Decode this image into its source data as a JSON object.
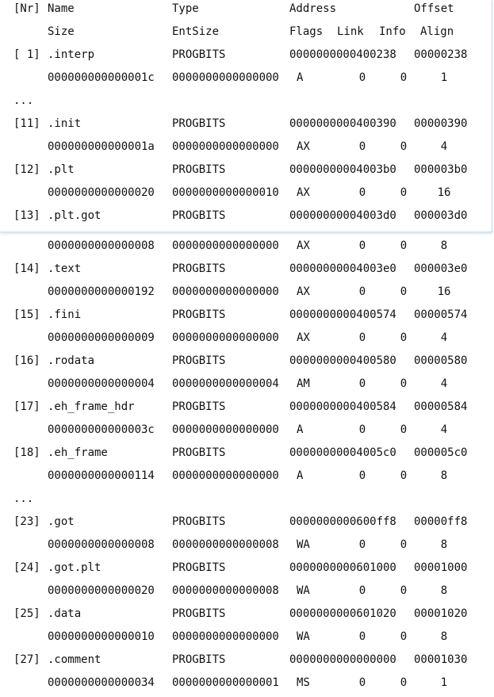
{
  "header": {
    "nr": "[Nr]",
    "name": "Name",
    "type": "Type",
    "address": "Address",
    "offset": "Offset",
    "size": "Size",
    "entsize": "EntSize",
    "flags": "Flags",
    "link": "Link",
    "info": "Info",
    "align": "Align"
  },
  "ellipsis": "...",
  "sections": [
    {
      "nr": "[ 1]",
      "name": ".interp",
      "type": "PROGBITS",
      "address": "0000000000400238",
      "offset": "00000238",
      "size": "000000000000001c",
      "entsize": "0000000000000000",
      "flags": "A",
      "link": "0",
      "info": "0",
      "align": "1"
    },
    {
      "nr": "[11]",
      "name": ".init",
      "type": "PROGBITS",
      "address": "0000000000400390",
      "offset": "00000390",
      "size": "000000000000001a",
      "entsize": "0000000000000000",
      "flags": "AX",
      "link": "0",
      "info": "0",
      "align": "4"
    },
    {
      "nr": "[12]",
      "name": ".plt",
      "type": "PROGBITS",
      "address": "00000000004003b0",
      "offset": "000003b0",
      "size": "0000000000000020",
      "entsize": "0000000000000010",
      "flags": "AX",
      "link": "0",
      "info": "0",
      "align": "16"
    },
    {
      "nr": "[13]",
      "name": ".plt.got",
      "type": "PROGBITS",
      "address": "00000000004003d0",
      "offset": "000003d0",
      "size": "0000000000000008",
      "entsize": "0000000000000000",
      "flags": "AX",
      "link": "0",
      "info": "0",
      "align": "8"
    },
    {
      "nr": "[14]",
      "name": ".text",
      "type": "PROGBITS",
      "address": "00000000004003e0",
      "offset": "000003e0",
      "size": "0000000000000192",
      "entsize": "0000000000000000",
      "flags": "AX",
      "link": "0",
      "info": "0",
      "align": "16"
    },
    {
      "nr": "[15]",
      "name": ".fini",
      "type": "PROGBITS",
      "address": "0000000000400574",
      "offset": "00000574",
      "size": "0000000000000009",
      "entsize": "0000000000000000",
      "flags": "AX",
      "link": "0",
      "info": "0",
      "align": "4"
    },
    {
      "nr": "[16]",
      "name": ".rodata",
      "type": "PROGBITS",
      "address": "0000000000400580",
      "offset": "00000580",
      "size": "0000000000000004",
      "entsize": "0000000000000004",
      "flags": "AM",
      "link": "0",
      "info": "0",
      "align": "4"
    },
    {
      "nr": "[17]",
      "name": ".eh_frame_hdr",
      "type": "PROGBITS",
      "address": "0000000000400584",
      "offset": "00000584",
      "size": "000000000000003c",
      "entsize": "0000000000000000",
      "flags": "A",
      "link": "0",
      "info": "0",
      "align": "4"
    },
    {
      "nr": "[18]",
      "name": ".eh_frame",
      "type": "PROGBITS",
      "address": "00000000004005c0",
      "offset": "000005c0",
      "size": "0000000000000114",
      "entsize": "0000000000000000",
      "flags": "A",
      "link": "0",
      "info": "0",
      "align": "8"
    },
    {
      "nr": "[23]",
      "name": ".got",
      "type": "PROGBITS",
      "address": "0000000000600ff8",
      "offset": "00000ff8",
      "size": "0000000000000008",
      "entsize": "0000000000000008",
      "flags": "WA",
      "link": "0",
      "info": "0",
      "align": "8"
    },
    {
      "nr": "[24]",
      "name": ".got.plt",
      "type": "PROGBITS",
      "address": "0000000000601000",
      "offset": "00001000",
      "size": "0000000000000020",
      "entsize": "0000000000000008",
      "flags": "WA",
      "link": "0",
      "info": "0",
      "align": "8"
    },
    {
      "nr": "[25]",
      "name": ".data",
      "type": "PROGBITS",
      "address": "0000000000601020",
      "offset": "00001020",
      "size": "0000000000000010",
      "entsize": "0000000000000000",
      "flags": "WA",
      "link": "0",
      "info": "0",
      "align": "8"
    },
    {
      "nr": "[27]",
      "name": ".comment",
      "type": "PROGBITS",
      "address": "0000000000000000",
      "offset": "00001030",
      "size": "0000000000000034",
      "entsize": "0000000000000001",
      "flags": "MS",
      "link": "0",
      "info": "0",
      "align": "1"
    }
  ]
}
